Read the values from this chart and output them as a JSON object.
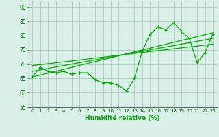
{
  "x_data": [
    0,
    1,
    2,
    3,
    4,
    5,
    6,
    7,
    8,
    9,
    10,
    11,
    12,
    13,
    14,
    15,
    16,
    17,
    18,
    19,
    20,
    21,
    22,
    23
  ],
  "y_data": [
    65.5,
    69.0,
    67.5,
    67.0,
    67.5,
    66.5,
    67.0,
    67.0,
    64.5,
    63.5,
    63.5,
    62.5,
    60.5,
    65.0,
    74.5,
    80.5,
    83.0,
    82.0,
    84.5,
    81.5,
    79.0,
    70.5,
    74.0,
    80.5
  ],
  "regression_lines": [
    {
      "x0": 0,
      "y0": 65.5,
      "x1": 23,
      "y1": 81.0
    },
    {
      "x0": 0,
      "y0": 67.5,
      "x1": 23,
      "y1": 79.0
    },
    {
      "x0": 0,
      "y0": 69.5,
      "x1": 23,
      "y1": 77.0
    }
  ],
  "line_color": "#00aa00",
  "bg_color": "#d8f0e8",
  "grid_color": "#aacaba",
  "xlabel": "Humidité relative (%)",
  "ylim": [
    55,
    92
  ],
  "xlim": [
    -0.5,
    23.5
  ],
  "yticks": [
    55,
    60,
    65,
    70,
    75,
    80,
    85,
    90
  ],
  "xticks": [
    0,
    1,
    2,
    3,
    4,
    5,
    6,
    7,
    8,
    9,
    10,
    11,
    12,
    13,
    14,
    15,
    16,
    17,
    18,
    19,
    20,
    21,
    22,
    23
  ]
}
